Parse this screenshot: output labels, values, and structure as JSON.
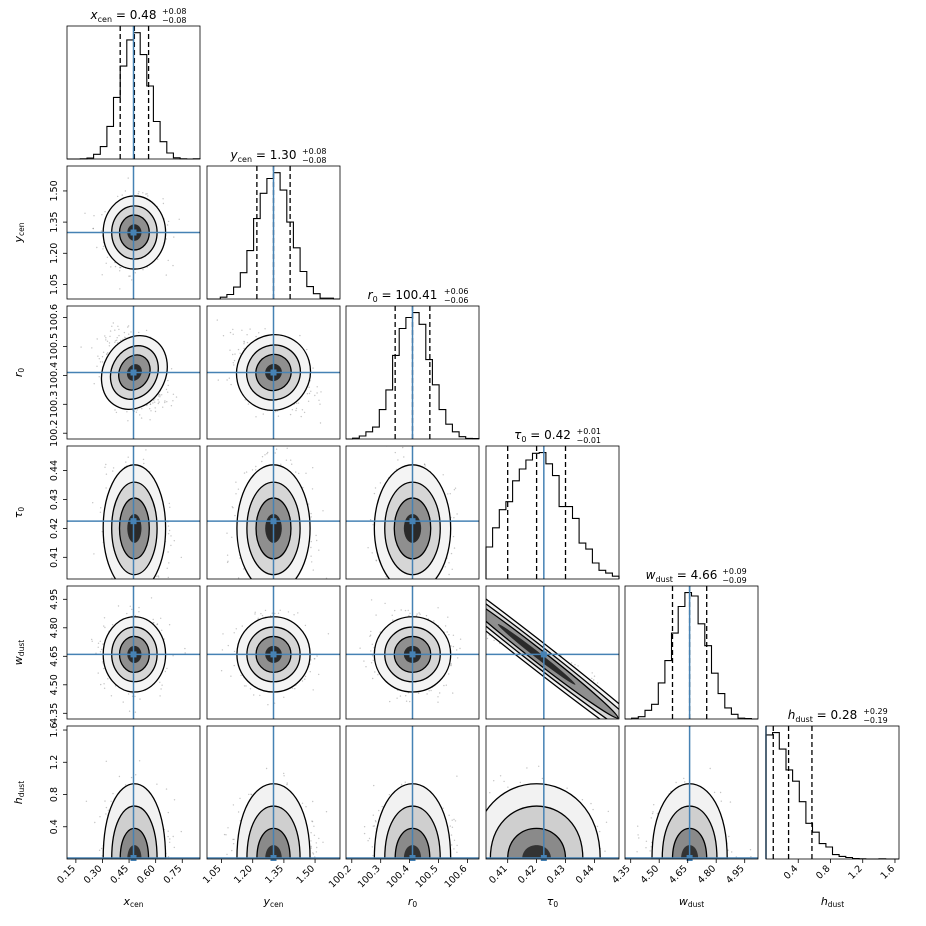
{
  "chart_data": {
    "type": "corner",
    "params": [
      {
        "label": "x",
        "sub": "cen",
        "median": 0.48,
        "plus": 0.08,
        "minus": 0.08,
        "title_value": "0.48",
        "title_plus": "+0.08",
        "title_minus": "−0.08",
        "range": [
          0.1,
          0.85
        ],
        "ticks": [
          0.15,
          0.3,
          0.45,
          0.6,
          0.75
        ],
        "tick_labels": [
          "0.15",
          "0.30",
          "0.45",
          "0.60",
          "0.75"
        ],
        "y_ticks_shown": []
      },
      {
        "label": "y",
        "sub": "cen",
        "median": 1.3,
        "plus": 0.08,
        "minus": 0.08,
        "title_value": "1.30",
        "title_plus": "+0.08",
        "title_minus": "−0.08",
        "range": [
          0.98,
          1.62
        ],
        "ticks": [
          1.05,
          1.2,
          1.35,
          1.5
        ],
        "tick_labels": [
          "1.05",
          "1.20",
          "1.35",
          "1.50"
        ],
        "y_ticks_shown": [
          1.05,
          1.2,
          1.35,
          1.5
        ]
      },
      {
        "label": "r",
        "sub": "0",
        "median": 100.41,
        "plus": 0.06,
        "minus": 0.06,
        "title_value": "100.41",
        "title_plus": "+0.06",
        "title_minus": "−0.06",
        "range": [
          100.18,
          100.64
        ],
        "ticks": [
          100.2,
          100.3,
          100.4,
          100.5,
          100.6
        ],
        "tick_labels": [
          "100.2",
          "100.3",
          "100.4",
          "100.5",
          "100.6"
        ],
        "y_ticks_shown": [
          100.2,
          100.3,
          100.4,
          100.5,
          100.6
        ]
      },
      {
        "label": "τ",
        "sub": "0",
        "median": 0.42,
        "plus": 0.01,
        "minus": 0.01,
        "title_value": "0.42",
        "title_plus": "+0.01",
        "title_minus": "−0.01",
        "range": [
          0.4025,
          0.4485
        ],
        "ticks": [
          0.41,
          0.42,
          0.43,
          0.44
        ],
        "tick_labels": [
          "0.41",
          "0.42",
          "0.43",
          "0.44"
        ],
        "y_ticks_shown": [
          0.41,
          0.42,
          0.43,
          0.44
        ]
      },
      {
        "label": "w",
        "sub": "dust",
        "median": 4.66,
        "plus": 0.09,
        "minus": 0.09,
        "title_value": "4.66",
        "title_plus": "+0.09",
        "title_minus": "−0.09",
        "range": [
          4.32,
          5.02
        ],
        "ticks": [
          4.35,
          4.5,
          4.65,
          4.8,
          4.95
        ],
        "tick_labels": [
          "4.35",
          "4.50",
          "4.65",
          "4.80",
          "4.95"
        ],
        "y_ticks_shown": [
          4.35,
          4.5,
          4.65,
          4.8,
          4.95
        ]
      },
      {
        "label": "h",
        "sub": "dust",
        "median": 0.28,
        "plus": 0.29,
        "minus": 0.19,
        "title_value": "0.28",
        "title_plus": "+0.29",
        "title_minus": "−0.19",
        "range": [
          0.0,
          1.65
        ],
        "ticks": [
          0.4,
          0.8,
          1.2,
          1.6
        ],
        "tick_labels": [
          "0.4",
          "0.8",
          "1.2",
          "1.6"
        ],
        "y_ticks_shown": [
          0.4,
          0.8,
          1.2,
          1.6
        ]
      }
    ],
    "truths": [
      0.475,
      1.3,
      100.41,
      0.4225,
      4.66,
      0.0
    ],
    "truth_color": "#4682b4",
    "hist_color": "#000000",
    "density_color": "#000000",
    "title_prefix": "="
  }
}
